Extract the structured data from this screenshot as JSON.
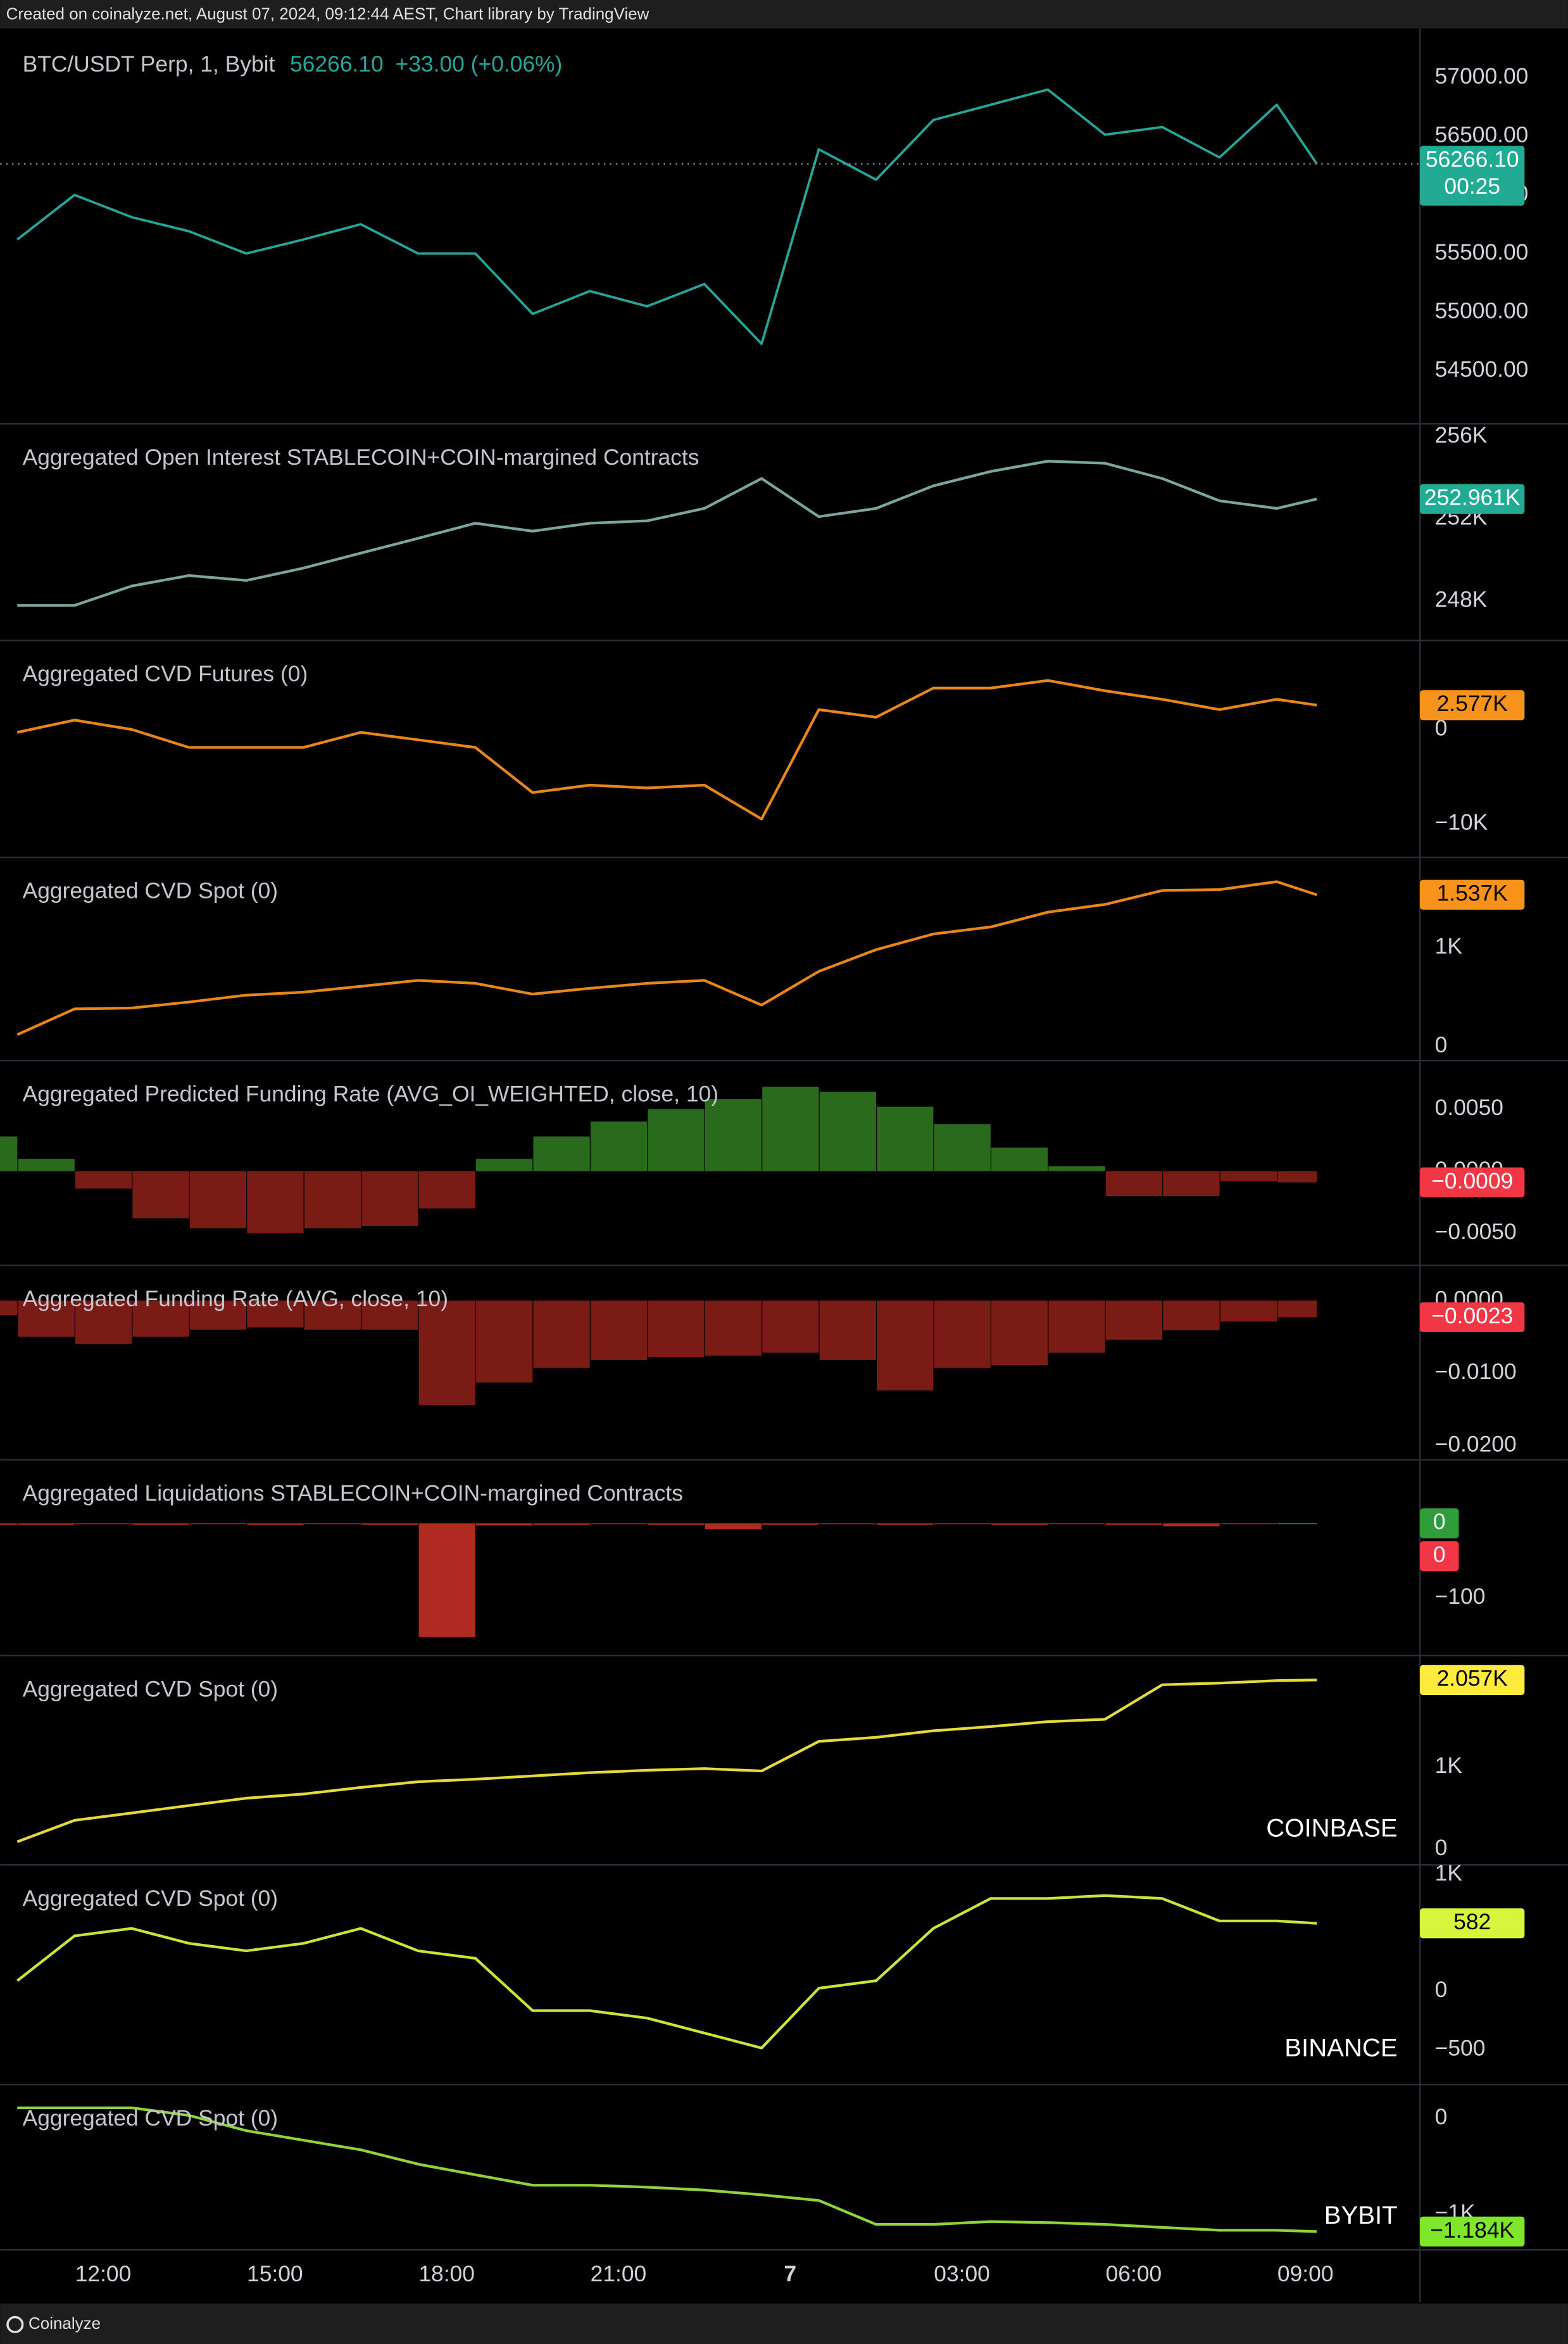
{
  "header": "Created on coinalyze.net, August 07, 2024, 09:12:44 AEST, Chart library by TradingView",
  "footer": "Coinalyze",
  "x_axis": {
    "xlim": [
      10.33,
      35
    ],
    "xticks": [
      {
        "value": 12,
        "label": "12:00"
      },
      {
        "value": 15,
        "label": "15:00"
      },
      {
        "value": 18,
        "label": "18:00"
      },
      {
        "value": 21,
        "label": "21:00"
      },
      {
        "value": 24,
        "label": "7"
      },
      {
        "value": 27,
        "label": "03:00"
      },
      {
        "value": 30,
        "label": "06:00"
      },
      {
        "value": 33,
        "label": "09:00"
      }
    ]
  },
  "chart_data": [
    {
      "type": "line",
      "title": "BTC/USDT Perp, 1, Bybit",
      "price_label": "56266.10",
      "change_label": "+33.00 (+0.06%)",
      "countdown": "00:25",
      "color": "#26a69a",
      "tag_color": "#22ab94",
      "tag_text_color": "#ffffff",
      "last_label": "56266.10",
      "x": [
        10.5,
        11.5,
        12.5,
        13.5,
        14.5,
        15.5,
        16.5,
        17.5,
        18.5,
        19.5,
        20.5,
        21.5,
        22.5,
        23.5,
        24.5,
        25.5,
        26.5,
        27.5,
        28.5,
        29.5,
        30.5,
        31.5,
        32.5,
        33.2
      ],
      "values": [
        55620,
        56000,
        55810,
        55690,
        55500,
        55620,
        55750,
        55500,
        55500,
        54985,
        55180,
        55050,
        55240,
        54730,
        56390,
        56130,
        56640,
        56770,
        56900,
        56515,
        56580,
        56320,
        56770,
        56266.1
      ],
      "ylim": [
        54054,
        57383
      ],
      "yticks": [
        {
          "value": 54500,
          "label": "54500.00"
        },
        {
          "value": 55000,
          "label": "55000.00"
        },
        {
          "value": 55500,
          "label": "55500.00"
        },
        {
          "value": 56000,
          "label": "56000.00"
        },
        {
          "value": 56500,
          "label": "56500.00"
        },
        {
          "value": 57000,
          "label": "57000.00"
        }
      ]
    },
    {
      "type": "line",
      "title": "Aggregated Open Interest STABLECOIN+COIN-margined Contracts",
      "color": "#7aa6a0",
      "tag_color": "#22ab94",
      "tag_text_color": "#ffffff",
      "last_label": "252.961K",
      "x": [
        10.5,
        11.5,
        12.5,
        13.5,
        14.5,
        15.5,
        16.5,
        17.5,
        18.5,
        19.5,
        20.5,
        21.5,
        22.5,
        23.5,
        24.5,
        25.5,
        26.5,
        27.5,
        28.5,
        29.5,
        30.5,
        31.5,
        32.5,
        33.2
      ],
      "values": [
        247.78,
        247.78,
        248.73,
        249.24,
        249.0,
        249.6,
        250.33,
        251.05,
        251.78,
        251.4,
        251.78,
        251.9,
        252.5,
        253.96,
        252.1,
        252.5,
        253.6,
        254.3,
        254.8,
        254.7,
        253.96,
        252.87,
        252.5,
        252.961
      ],
      "ylim": [
        246.11,
        256.51
      ],
      "yticks": [
        {
          "value": 248,
          "label": "248K"
        },
        {
          "value": 252,
          "label": "252K"
        },
        {
          "value": 256,
          "label": "256K"
        }
      ]
    },
    {
      "type": "line",
      "title": "Aggregated CVD Futures (0)",
      "color": "#e8861a",
      "tag_color": "#f7931a",
      "tag_text_color": "#000000",
      "last_label": "2.577K",
      "x": [
        10.5,
        11.5,
        12.5,
        13.5,
        14.5,
        15.5,
        16.5,
        17.5,
        18.5,
        19.5,
        20.5,
        21.5,
        22.5,
        23.5,
        24.5,
        25.5,
        26.5,
        27.5,
        28.5,
        29.5,
        30.5,
        31.5,
        32.5,
        33.2
      ],
      "values": [
        -0.3,
        1.0,
        0,
        -1.9,
        -1.9,
        -1.9,
        -0.3,
        -1.1,
        -1.9,
        -6.7,
        -5.9,
        -6.2,
        -5.9,
        -9.5,
        2.1,
        1.3,
        4.4,
        4.4,
        5.2,
        4.1,
        3.2,
        2.1,
        3.2,
        2.577
      ],
      "ylim": [
        -13.49,
        9.2
      ],
      "yticks": [
        {
          "value": -10,
          "label": "−10K"
        },
        0
      ]
    },
    {
      "type": "line",
      "title": "Aggregated CVD Spot (0)",
      "color": "#e8861a",
      "tag_color": "#f7931a",
      "tag_text_color": "#000000",
      "last_label": "1.537K",
      "x": [
        10.5,
        11.5,
        12.5,
        13.5,
        14.5,
        15.5,
        16.5,
        17.5,
        18.5,
        19.5,
        20.5,
        21.5,
        22.5,
        23.5,
        24.5,
        25.5,
        26.5,
        27.5,
        28.5,
        29.5,
        30.5,
        31.5,
        32.5,
        33.2
      ],
      "values": [
        0.12,
        0.38,
        0.39,
        0.45,
        0.52,
        0.55,
        0.61,
        0.67,
        0.64,
        0.53,
        0.59,
        0.64,
        0.67,
        0.42,
        0.76,
        0.98,
        1.14,
        1.21,
        1.36,
        1.44,
        1.58,
        1.59,
        1.67,
        1.537
      ],
      "ylim": [
        -0.121,
        1.894
      ],
      "yticks": [
        0,
        {
          "value": 1,
          "label": "1K"
        }
      ]
    },
    {
      "type": "bar",
      "title": "Aggregated Predicted Funding Rate (AVG_OI_WEIGHTED, close, 10)",
      "colors": {
        "positive": "#2a6a1c",
        "negative": "#7b1b16"
      },
      "tag_color": "#f23645",
      "tag_text_color": "#ffffff",
      "last_label": "−0.0009",
      "x": [
        10.5,
        11.5,
        12.5,
        13.5,
        14.5,
        15.5,
        16.5,
        17.5,
        18.5,
        19.5,
        20.5,
        21.5,
        22.5,
        23.5,
        24.5,
        25.5,
        26.5,
        27.5,
        28.5,
        29.5,
        30.5,
        31.5,
        32.5,
        33.2
      ],
      "values": [
        0.0028,
        0.001,
        -0.0014,
        -0.0038,
        -0.0046,
        -0.005,
        -0.0046,
        -0.0044,
        -0.003,
        0.001,
        0.0028,
        0.004,
        0.005,
        0.0058,
        0.0068,
        0.0064,
        0.0052,
        0.0038,
        0.0019,
        0.0004,
        -0.002,
        -0.002,
        -0.0008,
        -0.0009
      ],
      "ylim": [
        -0.00753,
        0.00873
      ],
      "yticks": [
        {
          "value": -0.005,
          "label": "−0.0050"
        },
        {
          "value": 0,
          "label": "0.0000"
        },
        {
          "value": 0.005,
          "label": "0.0050"
        }
      ]
    },
    {
      "type": "bar",
      "title": "Aggregated Funding Rate (AVG, close, 10)",
      "colors": {
        "positive": "#2a6a1c",
        "negative": "#7b1b16"
      },
      "tag_color": "#f23645",
      "tag_text_color": "#ffffff",
      "last_label": "−0.0023",
      "x": [
        10.5,
        11.5,
        12.5,
        13.5,
        14.5,
        15.5,
        16.5,
        17.5,
        18.5,
        19.5,
        20.5,
        21.5,
        22.5,
        23.5,
        24.5,
        25.5,
        26.5,
        27.5,
        28.5,
        29.5,
        30.5,
        31.5,
        32.5,
        33.2
      ],
      "values": [
        -0.002,
        -0.005,
        -0.006,
        -0.005,
        -0.004,
        -0.0037,
        -0.004,
        -0.004,
        -0.0144,
        -0.0113,
        -0.0093,
        -0.0082,
        -0.0078,
        -0.0076,
        -0.0072,
        -0.0082,
        -0.0124,
        -0.0093,
        -0.0089,
        -0.0072,
        -0.0054,
        -0.0041,
        -0.0029,
        -0.0023
      ],
      "ylim": [
        -0.02165,
        0.00454
      ],
      "yticks": [
        {
          "value": -0.02,
          "label": "−0.0200"
        },
        {
          "value": -0.01,
          "label": "−0.0100"
        },
        {
          "value": 0,
          "label": "0.0000"
        }
      ]
    },
    {
      "type": "bar",
      "title": "Aggregated Liquidations STABLECOIN+COIN-margined Contracts",
      "colors": {
        "positive": "#2e9e3a",
        "negative": "#b02a22"
      },
      "latest_tags": [
        0,
        0
      ],
      "tag_colors": [
        "#2e9e3a",
        "#f23645"
      ],
      "tag_text_color": "#ffffff",
      "x": [
        10.5,
        11.5,
        12.5,
        13.5,
        14.5,
        15.5,
        16.5,
        17.5,
        18.5,
        19.5,
        20.5,
        21.5,
        22.5,
        23.5,
        24.5,
        25.5,
        26.5,
        27.5,
        28.5,
        29.5,
        30.5,
        31.5,
        32.5,
        33.2
      ],
      "values": [
        -2,
        -2,
        -1,
        -2,
        -1,
        -2,
        -1,
        -2,
        -152,
        -3,
        -2,
        -1,
        -2,
        -8,
        -2,
        -1,
        -2,
        -1,
        -2,
        -1,
        -2,
        -4,
        -1,
        0
      ],
      "ylim": [
        -174,
        82
      ],
      "yticks": [
        {
          "value": -100,
          "label": "−100"
        }
      ]
    },
    {
      "type": "line",
      "title": "Aggregated CVD Spot (0)",
      "annotation": "COINBASE",
      "color": "#e6d93a",
      "tag_color": "#ffeb3b",
      "tag_text_color": "#000000",
      "last_label": "2.057K",
      "x": [
        10.5,
        11.5,
        12.5,
        13.5,
        14.5,
        15.5,
        16.5,
        17.5,
        18.5,
        19.5,
        20.5,
        21.5,
        22.5,
        23.5,
        24.5,
        25.5,
        26.5,
        27.5,
        28.5,
        29.5,
        30.5,
        31.5,
        32.5,
        33.2
      ],
      "values": [
        0.09,
        0.35,
        0.44,
        0.53,
        0.62,
        0.67,
        0.75,
        0.82,
        0.85,
        0.89,
        0.93,
        0.96,
        0.98,
        0.95,
        1.31,
        1.36,
        1.44,
        1.49,
        1.55,
        1.58,
        2.0,
        2.02,
        2.05,
        2.057
      ],
      "ylim": [
        -0.164,
        2.327
      ],
      "yticks": [
        0,
        {
          "value": 1,
          "label": "1K"
        }
      ]
    },
    {
      "type": "line",
      "title": "Aggregated CVD Spot (0)",
      "annotation": "BINANCE",
      "color": "#c6e63a",
      "tag_color": "#d7f53c",
      "tag_text_color": "#000000",
      "last_label": "582",
      "x": [
        10.5,
        11.5,
        12.5,
        13.5,
        14.5,
        15.5,
        16.5,
        17.5,
        18.5,
        19.5,
        20.5,
        21.5,
        22.5,
        23.5,
        24.5,
        25.5,
        26.5,
        27.5,
        28.5,
        29.5,
        30.5,
        31.5,
        32.5,
        33.2
      ],
      "values": [
        90,
        474,
        538,
        410,
        346,
        410,
        538,
        346,
        282,
        -167,
        -167,
        -231,
        -359,
        -487,
        26,
        90,
        538,
        795,
        795,
        820,
        795,
        603,
        603,
        582
      ],
      "ylim": [
        -782,
        1064
      ],
      "yticks": [
        {
          "value": -500,
          "label": "−500"
        },
        0,
        {
          "value": 1000,
          "label": "1K"
        }
      ]
    },
    {
      "type": "line",
      "title": "Aggregated CVD Spot (0)",
      "annotation": "BYBIT",
      "color": "#8fd43a",
      "tag_color": "#7fe72a",
      "tag_text_color": "#000000",
      "last_label": "−1.184K",
      "x": [
        10.5,
        11.5,
        12.5,
        13.5,
        14.5,
        15.5,
        16.5,
        17.5,
        18.5,
        19.5,
        20.5,
        21.5,
        22.5,
        23.5,
        24.5,
        25.5,
        26.5,
        27.5,
        28.5,
        29.5,
        30.5,
        31.5,
        32.5,
        33.2
      ],
      "values": [
        0.11,
        0.11,
        0.11,
        0.03,
        -0.13,
        -0.23,
        -0.33,
        -0.48,
        -0.59,
        -0.7,
        -0.7,
        -0.72,
        -0.75,
        -0.8,
        -0.86,
        -1.11,
        -1.11,
        -1.08,
        -1.09,
        -1.11,
        -1.14,
        -1.17,
        -1.17,
        -1.184
      ],
      "ylim": [
        -1.375,
        0.328
      ],
      "yticks": [
        {
          "value": -1,
          "label": "−1K"
        },
        0
      ]
    }
  ]
}
